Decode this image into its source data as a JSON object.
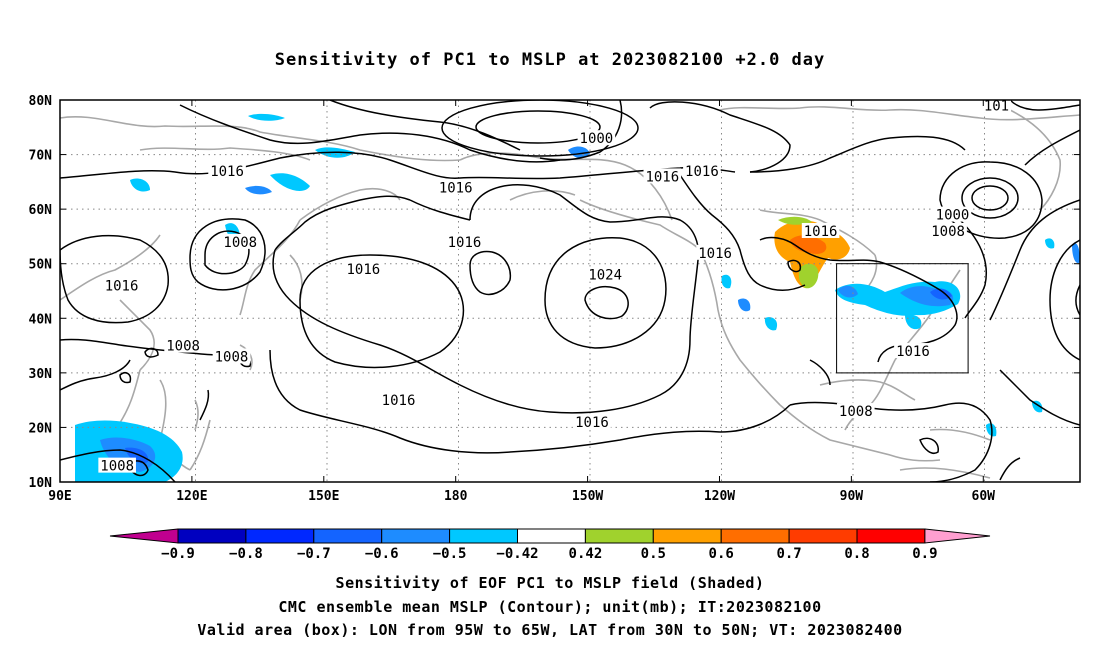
{
  "title": "Sensitivity of PC1 to MSLP at 2023082100 +2.0 day",
  "map": {
    "lat_labels": [
      "80N",
      "70N",
      "60N",
      "50N",
      "40N",
      "30N",
      "20N",
      "10N"
    ],
    "lon_labels": [
      "90E",
      "120E",
      "150E",
      "180",
      "150W",
      "120W",
      "90W",
      "60W"
    ],
    "contour_labels": [
      {
        "text": "1000",
        "lon": -148,
        "lat": 73
      },
      {
        "text": "1016",
        "lon": 128,
        "lat": 67
      },
      {
        "text": "1016",
        "lon": 180,
        "lat": 64
      },
      {
        "text": "1016",
        "lon": -133,
        "lat": 66
      },
      {
        "text": "1016",
        "lon": -124,
        "lat": 67
      },
      {
        "text": "1016",
        "lon": -97,
        "lat": 56
      },
      {
        "text": "1000",
        "lon": -67,
        "lat": 59
      },
      {
        "text": "1008",
        "lon": -68,
        "lat": 56
      },
      {
        "text": "1008",
        "lon": 131,
        "lat": 54
      },
      {
        "text": "1016",
        "lon": 104,
        "lat": 46
      },
      {
        "text": "1016",
        "lon": 182,
        "lat": 54
      },
      {
        "text": "1016",
        "lon": -121,
        "lat": 52
      },
      {
        "text": "1024",
        "lon": -146,
        "lat": 48
      },
      {
        "text": "1016",
        "lon": 159,
        "lat": 49
      },
      {
        "text": "1008",
        "lon": 118,
        "lat": 35
      },
      {
        "text": "1008",
        "lon": 129,
        "lat": 33
      },
      {
        "text": "1016",
        "lon": -76,
        "lat": 34
      },
      {
        "text": "1016",
        "lon": 167,
        "lat": 25
      },
      {
        "text": "1016",
        "lon": -149,
        "lat": 21
      },
      {
        "text": "1008",
        "lon": -89,
        "lat": 23
      },
      {
        "text": "1008",
        "lon": 103,
        "lat": 13
      },
      {
        "text": "101",
        "lon": -57,
        "lat": 79
      }
    ],
    "valid_box": {
      "lon_min": -95,
      "lon_max": -65,
      "lat_min": 30,
      "lat_max": 50
    }
  },
  "colorbar": {
    "labels": [
      "−0.9",
      "−0.8",
      "−0.7",
      "−0.6",
      "−0.5",
      "−0.42",
      "0.42",
      "0.5",
      "0.6",
      "0.7",
      "0.8",
      "0.9"
    ],
    "colors": [
      "#c0008f",
      "#0000c0",
      "#0028ff",
      "#1464ff",
      "#1e8cff",
      "#00c8ff",
      "#ffffff",
      "#a0d22d",
      "#ffa000",
      "#ff6e00",
      "#ff3c00",
      "#ff0000",
      "#ff9fd0"
    ]
  },
  "captions": {
    "line1": "Sensitivity of EOF PC1 to MSLP field (Shaded)",
    "line2": "CMC ensemble mean MSLP (Contour); unit(mb); IT:2023082100",
    "line3": "Valid area (box): LON from 95W to 65W, LAT from 30N to 50N; VT: 2023082400"
  }
}
